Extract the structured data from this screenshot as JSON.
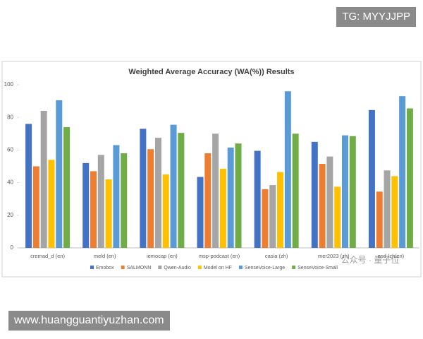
{
  "chart_data": {
    "type": "bar",
    "title": "Weighted Average Accuracy (WA(%)) Results",
    "categories": [
      "cremad_d (en)",
      "meld (en)",
      "iemocap (en)",
      "msp-podcast (en)",
      "casia (zh)",
      "mer2023 (zh)",
      "esd (zh/en)"
    ],
    "series": [
      {
        "name": "Emobox",
        "color": "#4472c4",
        "values": [
          76,
          52,
          73,
          43.5,
          59.5,
          65,
          84.5
        ]
      },
      {
        "name": "SALMONN",
        "color": "#ed7d31",
        "values": [
          50,
          47,
          60.5,
          58,
          36,
          51.5,
          34.5
        ]
      },
      {
        "name": "Qwen-Audio",
        "color": "#a5a5a5",
        "values": [
          84,
          57,
          67.5,
          70,
          38.5,
          56,
          47.5
        ]
      },
      {
        "name": "Model on HF",
        "color": "#ffc000",
        "values": [
          54,
          42,
          45,
          48.5,
          46.5,
          37.5,
          44
        ]
      },
      {
        "name": "SenseVoice-Large",
        "color": "#5b9bd5",
        "values": [
          90.5,
          63,
          75.5,
          61.5,
          96,
          69,
          93
        ]
      },
      {
        "name": "SenseVoice-Small",
        "color": "#70ad47",
        "values": [
          74,
          58,
          70.5,
          64,
          70,
          68.5,
          85.5
        ]
      }
    ],
    "ylim": [
      0,
      100
    ],
    "yticks": [
      0,
      20,
      40,
      60,
      80,
      100
    ],
    "grid": false,
    "legend": "bottom"
  },
  "watermarks": {
    "top_right": "TG: MYYJJPP",
    "bottom_left": "www.huangguantiyuzhan.com",
    "overlay": "公众号 · 量子位"
  }
}
